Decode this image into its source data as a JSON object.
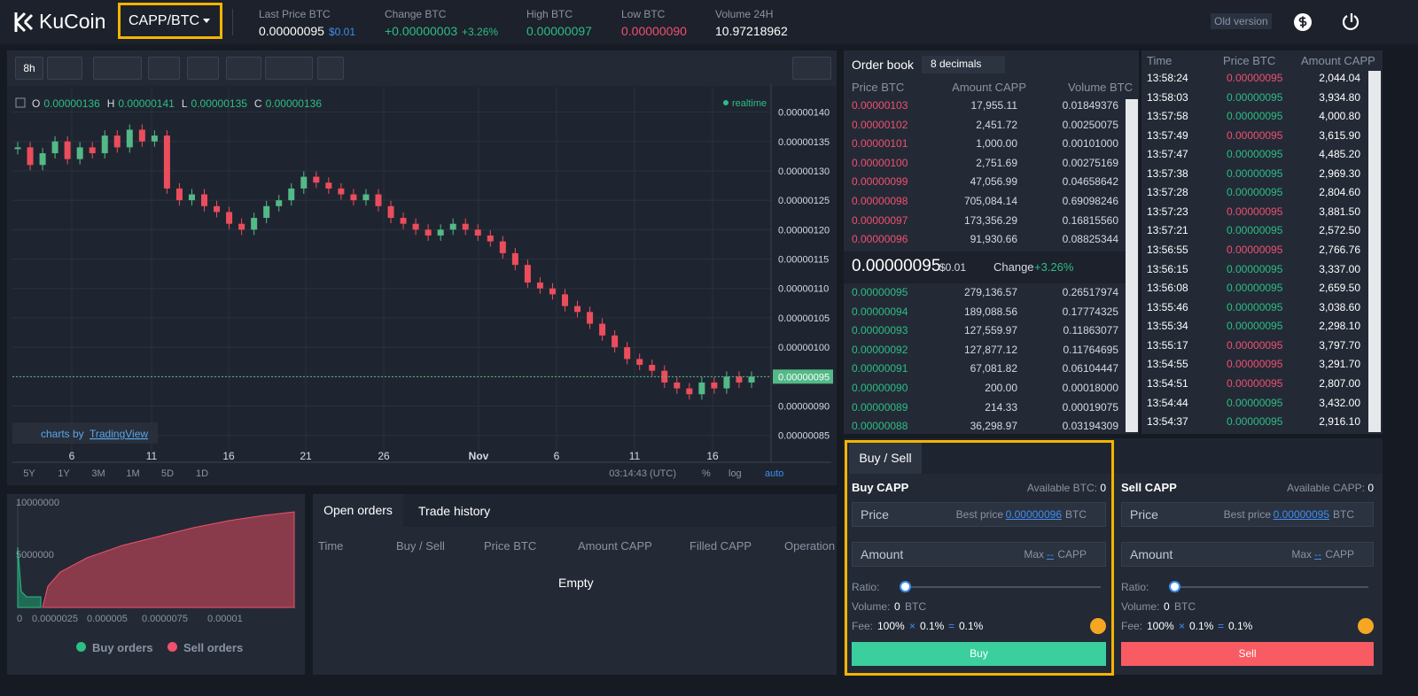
{
  "header": {
    "logo": "KuCoin",
    "pair": "CAPP/BTC",
    "old_version": "Old version",
    "stats": [
      {
        "label": "Last Price BTC",
        "value": "0.00000095",
        "extra": "$0.01"
      },
      {
        "label": "Change BTC",
        "value": "+0.00000003",
        "extra": "+3.26%"
      },
      {
        "label": "High BTC",
        "value": "0.00000097"
      },
      {
        "label": "Low BTC",
        "value": "0.00000090"
      },
      {
        "label": "Volume 24H",
        "value": "10.97218962"
      }
    ]
  },
  "toolbar": {
    "interval": "8h"
  },
  "chart": {
    "legend": [
      {
        "key": "O",
        "value": "0.00000136"
      },
      {
        "key": "H",
        "value": "0.00000141"
      },
      {
        "key": "L",
        "value": "0.00000135"
      },
      {
        "key": "C",
        "value": "0.00000136"
      }
    ],
    "realtime": "realtime",
    "last_price_tag": "0.00000095",
    "x_labels": [
      "6",
      "11",
      "16",
      "21",
      "26",
      "Nov",
      "6",
      "11",
      "16"
    ],
    "branding": "charts by",
    "branding_link": "TradingView",
    "ranges": [
      "5Y",
      "1Y",
      "3M",
      "1M",
      "5D",
      "1D"
    ],
    "time": "03:14:43 (UTC)",
    "percent": "%",
    "log": "log",
    "auto": "auto"
  },
  "price_chart": {
    "type": "candlestick",
    "ylim": [
      8.3e-07,
      1.44e-06
    ],
    "yticks": [
      {
        "value": 1.4e-06,
        "label": "0.00000140"
      },
      {
        "value": 1.35e-06,
        "label": "0.00000135"
      },
      {
        "value": 1.3e-06,
        "label": "0.00000130"
      },
      {
        "value": 1.25e-06,
        "label": "0.00000125"
      },
      {
        "value": 1.2e-06,
        "label": "0.00000120"
      },
      {
        "value": 1.15e-06,
        "label": "0.00000115"
      },
      {
        "value": 1.1e-06,
        "label": "0.00000110"
      },
      {
        "value": 1.05e-06,
        "label": "0.00000105"
      },
      {
        "value": 1e-06,
        "label": "0.00000100"
      },
      {
        "value": 9.5e-07,
        "label": "0.00000095"
      },
      {
        "value": 9e-07,
        "label": "0.00000090"
      },
      {
        "value": 8.5e-07,
        "label": "0.00000085"
      }
    ],
    "closes": [
      1.34e-06,
      1.31e-06,
      1.33e-06,
      1.35e-06,
      1.32e-06,
      1.34e-06,
      1.33e-06,
      1.36e-06,
      1.34e-06,
      1.37e-06,
      1.35e-06,
      1.36e-06,
      1.27e-06,
      1.25e-06,
      1.26e-06,
      1.24e-06,
      1.23e-06,
      1.21e-06,
      1.2e-06,
      1.22e-06,
      1.24e-06,
      1.25e-06,
      1.27e-06,
      1.29e-06,
      1.28e-06,
      1.27e-06,
      1.26e-06,
      1.25e-06,
      1.26e-06,
      1.24e-06,
      1.22e-06,
      1.21e-06,
      1.2e-06,
      1.19e-06,
      1.2e-06,
      1.21e-06,
      1.2e-06,
      1.19e-06,
      1.18e-06,
      1.16e-06,
      1.14e-06,
      1.11e-06,
      1.1e-06,
      1.09e-06,
      1.07e-06,
      1.06e-06,
      1.04e-06,
      1.02e-06,
      1e-06,
      9.8e-07,
      9.7e-07,
      9.6e-07,
      9.4e-07,
      9.3e-07,
      9.2e-07,
      9.4e-07,
      9.3e-07,
      9.5e-07,
      9.4e-07,
      9.5e-07
    ]
  },
  "order_book": {
    "title": "Order book",
    "decimals": "8 decimals",
    "columns": [
      "Price BTC",
      "Amount CAPP",
      "Volume BTC"
    ],
    "asks": [
      [
        "0.00000103",
        "17,955.11",
        "0.01849376"
      ],
      [
        "0.00000102",
        "2,451.72",
        "0.00250075"
      ],
      [
        "0.00000101",
        "1,000.00",
        "0.00101000"
      ],
      [
        "0.00000100",
        "2,751.69",
        "0.00275169"
      ],
      [
        "0.00000099",
        "47,056.99",
        "0.04658642"
      ],
      [
        "0.00000098",
        "705,084.14",
        "0.69098246"
      ],
      [
        "0.00000097",
        "173,356.29",
        "0.16815560"
      ],
      [
        "0.00000096",
        "91,930.66",
        "0.08825344"
      ]
    ],
    "mid": {
      "price": "0.00000095",
      "usd": "$0.01",
      "change_label": "Change",
      "change": "+3.26%"
    },
    "bids": [
      [
        "0.00000095",
        "279,136.57",
        "0.26517974"
      ],
      [
        "0.00000094",
        "189,088.56",
        "0.17774325"
      ],
      [
        "0.00000093",
        "127,559.97",
        "0.11863077"
      ],
      [
        "0.00000092",
        "127,877.12",
        "0.11764695"
      ],
      [
        "0.00000091",
        "67,081.82",
        "0.06104447"
      ],
      [
        "0.00000090",
        "200.00",
        "0.00018000"
      ],
      [
        "0.00000089",
        "214.33",
        "0.00019075"
      ],
      [
        "0.00000088",
        "36,298.97",
        "0.03194309"
      ]
    ]
  },
  "trades": {
    "columns": [
      "Time",
      "Price BTC",
      "Amount CAPP"
    ],
    "rows": [
      {
        "time": "13:58:24",
        "price": "0.00000095",
        "amount": "2,044.04",
        "color": "#f0506e"
      },
      {
        "time": "13:58:03",
        "price": "0.00000095",
        "amount": "3,934.80",
        "color": "#2dbd85"
      },
      {
        "time": "13:57:58",
        "price": "0.00000095",
        "amount": "4,000.80",
        "color": "#2dbd85"
      },
      {
        "time": "13:57:49",
        "price": "0.00000095",
        "amount": "3,615.90",
        "color": "#f0506e"
      },
      {
        "time": "13:57:47",
        "price": "0.00000095",
        "amount": "4,485.20",
        "color": "#2dbd85"
      },
      {
        "time": "13:57:38",
        "price": "0.00000095",
        "amount": "2,969.30",
        "color": "#2dbd85"
      },
      {
        "time": "13:57:28",
        "price": "0.00000095",
        "amount": "2,804.60",
        "color": "#2dbd85"
      },
      {
        "time": "13:57:23",
        "price": "0.00000095",
        "amount": "3,881.50",
        "color": "#f0506e"
      },
      {
        "time": "13:57:21",
        "price": "0.00000095",
        "amount": "2,572.50",
        "color": "#2dbd85"
      },
      {
        "time": "13:56:55",
        "price": "0.00000095",
        "amount": "2,766.76",
        "color": "#f0506e"
      },
      {
        "time": "13:56:15",
        "price": "0.00000095",
        "amount": "3,337.00",
        "color": "#2dbd85"
      },
      {
        "time": "13:56:08",
        "price": "0.00000095",
        "amount": "2,659.50",
        "color": "#2dbd85"
      },
      {
        "time": "13:55:46",
        "price": "0.00000095",
        "amount": "3,038.60",
        "color": "#2dbd85"
      },
      {
        "time": "13:55:34",
        "price": "0.00000095",
        "amount": "2,298.10",
        "color": "#2dbd85"
      },
      {
        "time": "13:55:17",
        "price": "0.00000095",
        "amount": "3,797.70",
        "color": "#f0506e"
      },
      {
        "time": "13:54:55",
        "price": "0.00000095",
        "amount": "3,291.70",
        "color": "#f0506e"
      },
      {
        "time": "13:54:51",
        "price": "0.00000095",
        "amount": "2,807.00",
        "color": "#f0506e"
      },
      {
        "time": "13:54:44",
        "price": "0.00000095",
        "amount": "3,432.00",
        "color": "#2dbd85"
      },
      {
        "time": "13:54:37",
        "price": "0.00000095",
        "amount": "2,916.10",
        "color": "#2dbd85"
      }
    ]
  },
  "depth": {
    "y_labels": [
      "10000000",
      "5000000"
    ],
    "x_labels": [
      "0",
      "0.0000025",
      "0.000005",
      "0.0000075",
      "0.00001"
    ],
    "legend": [
      "Buy orders",
      "Sell orders"
    ]
  },
  "orders": {
    "tabs": [
      "Open orders",
      "Trade history"
    ],
    "columns": [
      "Time",
      "Buy / Sell",
      "Price BTC",
      "Amount CAPP",
      "Filled CAPP",
      "Operation"
    ],
    "empty": "Empty"
  },
  "trade_form": {
    "tab": "Buy / Sell",
    "buy": {
      "title": "Buy CAPP",
      "available_label": "Available BTC:",
      "available": "0",
      "price": "Price",
      "best_label": "Best price",
      "best": "0.00000096",
      "price_unit": "BTC",
      "amount": "Amount",
      "max_label": "Max",
      "max": "--",
      "amount_unit": "CAPP",
      "ratio": "Ratio:",
      "volume_label": "Volume:",
      "volume": "0",
      "volume_unit": "BTC",
      "fee_label": "Fee:",
      "fee_a": "100%",
      "times": "×",
      "fee_b": "0.1%",
      "equals": "=",
      "fee_c": "0.1%",
      "button": "Buy"
    },
    "sell": {
      "title": "Sell CAPP",
      "available_label": "Available CAPP:",
      "available": "0",
      "price": "Price",
      "best_label": "Best price",
      "best": "0.00000095",
      "price_unit": "BTC",
      "amount": "Amount",
      "max_label": "Max",
      "max": "--",
      "amount_unit": "CAPP",
      "ratio": "Ratio:",
      "volume_label": "Volume:",
      "volume": "0",
      "volume_unit": "BTC",
      "fee_label": "Fee:",
      "fee_a": "100%",
      "times": "×",
      "fee_b": "0.1%",
      "equals": "=",
      "fee_c": "0.1%",
      "button": "Sell"
    }
  }
}
